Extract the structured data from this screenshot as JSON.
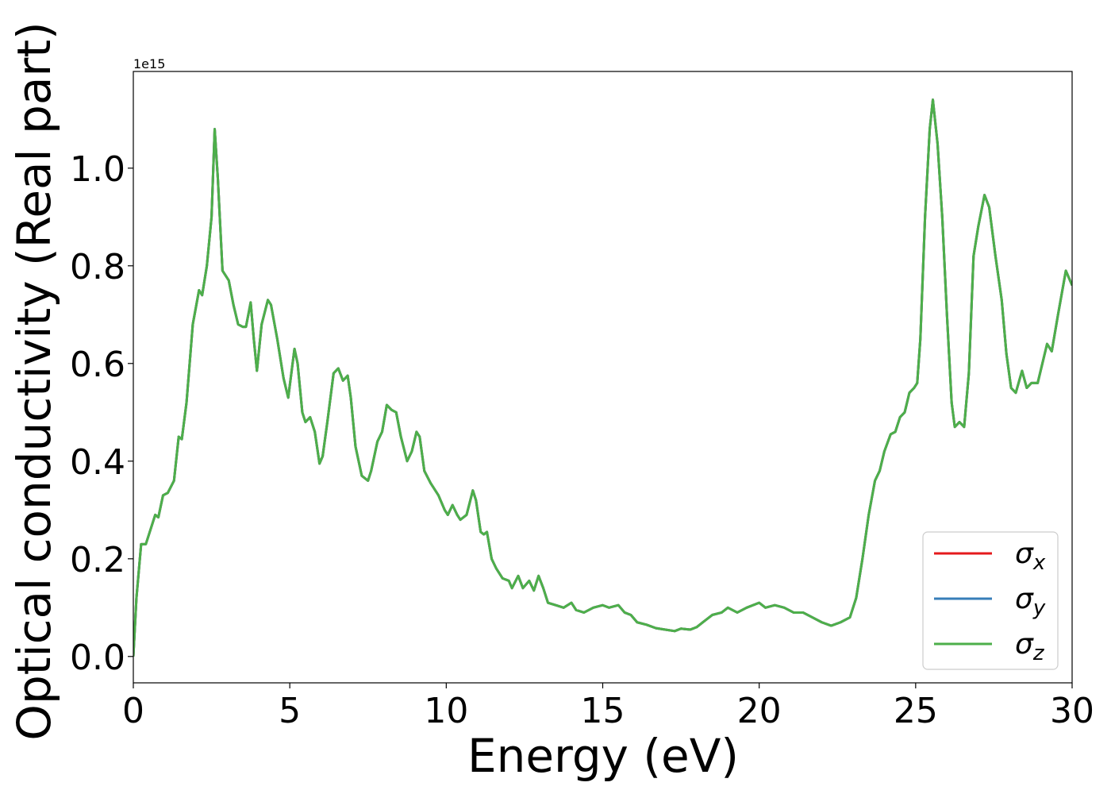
{
  "chart_data": {
    "type": "line",
    "xlabel": "Energy (eV)",
    "ylabel": "Optical conductivity (Real part)",
    "y_offset_label": "1e15",
    "xlim": [
      0,
      30
    ],
    "ylim": [
      -0.054,
      1.198
    ],
    "xticks": [
      0,
      5,
      10,
      15,
      20,
      25,
      30
    ],
    "yticks": [
      {
        "value": 0,
        "label": "0.0"
      },
      0.2,
      0.4,
      0.6,
      0.8,
      {
        "value": 1,
        "label": "1.0"
      }
    ],
    "legend": "lower right",
    "x": [
      0,
      0.1,
      0.25,
      0.4,
      0.5,
      0.7,
      0.8,
      0.95,
      1.1,
      1.3,
      1.45,
      1.55,
      1.7,
      1.9,
      2.1,
      2.2,
      2.35,
      2.5,
      2.6,
      2.7,
      2.85,
      2.95,
      3.05,
      3.2,
      3.35,
      3.5,
      3.6,
      3.75,
      3.85,
      3.95,
      4.1,
      4.3,
      4.4,
      4.6,
      4.8,
      4.95,
      5.05,
      5.15,
      5.25,
      5.4,
      5.5,
      5.65,
      5.8,
      5.95,
      6.05,
      6.2,
      6.4,
      6.55,
      6.7,
      6.85,
      6.95,
      7.1,
      7.3,
      7.5,
      7.6,
      7.8,
      7.95,
      8.1,
      8.25,
      8.4,
      8.55,
      8.75,
      8.9,
      9.05,
      9.15,
      9.3,
      9.5,
      9.75,
      9.95,
      10.05,
      10.2,
      10.35,
      10.45,
      10.65,
      10.85,
      10.95,
      11.1,
      11.2,
      11.3,
      11.45,
      11.6,
      11.8,
      12.0,
      12.1,
      12.3,
      12.45,
      12.65,
      12.8,
      12.95,
      13.1,
      13.25,
      13.5,
      13.75,
      14.0,
      14.15,
      14.4,
      14.7,
      15.0,
      15.2,
      15.5,
      15.7,
      15.9,
      16.1,
      16.4,
      16.7,
      17.0,
      17.3,
      17.5,
      17.8,
      18.0,
      18.2,
      18.5,
      18.8,
      19.0,
      19.3,
      19.6,
      20.0,
      20.2,
      20.5,
      20.8,
      21.1,
      21.4,
      21.7,
      22.0,
      22.3,
      22.6,
      22.9,
      23.1,
      23.3,
      23.5,
      23.7,
      23.85,
      24.0,
      24.2,
      24.35,
      24.5,
      24.65,
      24.8,
      24.95,
      25.05,
      25.15,
      25.3,
      25.45,
      25.55,
      25.7,
      25.85,
      26.0,
      26.15,
      26.25,
      26.4,
      26.55,
      26.7,
      26.85,
      27.0,
      27.2,
      27.35,
      27.55,
      27.75,
      27.9,
      28.05,
      28.2,
      28.4,
      28.55,
      28.7,
      28.9,
      29.05,
      29.2,
      29.35,
      29.55,
      29.8,
      30.0
    ],
    "series": [
      {
        "name": "σ",
        "subscript": "x",
        "color": "#e41a1c",
        "values": [
          0,
          0.12,
          0.23,
          0.23,
          0.25,
          0.29,
          0.285,
          0.33,
          0.335,
          0.36,
          0.45,
          0.445,
          0.52,
          0.68,
          0.75,
          0.74,
          0.8,
          0.9,
          1.08,
          0.98,
          0.79,
          0.78,
          0.77,
          0.72,
          0.68,
          0.675,
          0.675,
          0.725,
          0.65,
          0.585,
          0.68,
          0.73,
          0.72,
          0.65,
          0.57,
          0.53,
          0.58,
          0.63,
          0.6,
          0.5,
          0.48,
          0.49,
          0.46,
          0.395,
          0.41,
          0.48,
          0.58,
          0.59,
          0.565,
          0.575,
          0.53,
          0.43,
          0.37,
          0.36,
          0.38,
          0.44,
          0.46,
          0.515,
          0.505,
          0.5,
          0.45,
          0.4,
          0.42,
          0.46,
          0.45,
          0.38,
          0.355,
          0.33,
          0.3,
          0.29,
          0.31,
          0.29,
          0.28,
          0.29,
          0.34,
          0.32,
          0.255,
          0.25,
          0.255,
          0.2,
          0.18,
          0.16,
          0.155,
          0.14,
          0.165,
          0.14,
          0.155,
          0.135,
          0.165,
          0.14,
          0.11,
          0.105,
          0.1,
          0.11,
          0.095,
          0.09,
          0.1,
          0.105,
          0.1,
          0.105,
          0.09,
          0.085,
          0.07,
          0.065,
          0.058,
          0.055,
          0.052,
          0.057,
          0.055,
          0.06,
          0.07,
          0.085,
          0.09,
          0.1,
          0.09,
          0.1,
          0.11,
          0.1,
          0.105,
          0.1,
          0.09,
          0.09,
          0.08,
          0.07,
          0.063,
          0.07,
          0.08,
          0.12,
          0.2,
          0.29,
          0.36,
          0.38,
          0.42,
          0.455,
          0.46,
          0.49,
          0.5,
          0.54,
          0.55,
          0.56,
          0.65,
          0.9,
          1.08,
          1.14,
          1.05,
          0.9,
          0.7,
          0.52,
          0.47,
          0.48,
          0.47,
          0.58,
          0.82,
          0.88,
          0.945,
          0.92,
          0.82,
          0.73,
          0.62,
          0.55,
          0.54,
          0.585,
          0.55,
          0.56,
          0.56,
          0.6,
          0.64,
          0.625,
          0.7,
          0.79,
          0.76
        ]
      },
      {
        "name": "σ",
        "subscript": "y",
        "color": "#377eb8",
        "values": [
          0,
          0.12,
          0.23,
          0.23,
          0.25,
          0.29,
          0.285,
          0.33,
          0.335,
          0.36,
          0.45,
          0.445,
          0.52,
          0.68,
          0.75,
          0.74,
          0.8,
          0.9,
          1.08,
          0.98,
          0.79,
          0.78,
          0.77,
          0.72,
          0.68,
          0.675,
          0.675,
          0.725,
          0.65,
          0.585,
          0.68,
          0.73,
          0.72,
          0.65,
          0.57,
          0.53,
          0.58,
          0.63,
          0.6,
          0.5,
          0.48,
          0.49,
          0.46,
          0.395,
          0.41,
          0.48,
          0.58,
          0.59,
          0.565,
          0.575,
          0.53,
          0.43,
          0.37,
          0.36,
          0.38,
          0.44,
          0.46,
          0.515,
          0.505,
          0.5,
          0.45,
          0.4,
          0.42,
          0.46,
          0.45,
          0.38,
          0.355,
          0.33,
          0.3,
          0.29,
          0.31,
          0.29,
          0.28,
          0.29,
          0.34,
          0.32,
          0.255,
          0.25,
          0.255,
          0.2,
          0.18,
          0.16,
          0.155,
          0.14,
          0.165,
          0.14,
          0.155,
          0.135,
          0.165,
          0.14,
          0.11,
          0.105,
          0.1,
          0.11,
          0.095,
          0.09,
          0.1,
          0.105,
          0.1,
          0.105,
          0.09,
          0.085,
          0.07,
          0.065,
          0.058,
          0.055,
          0.052,
          0.057,
          0.055,
          0.06,
          0.07,
          0.085,
          0.09,
          0.1,
          0.09,
          0.1,
          0.11,
          0.1,
          0.105,
          0.1,
          0.09,
          0.09,
          0.08,
          0.07,
          0.063,
          0.07,
          0.08,
          0.12,
          0.2,
          0.29,
          0.36,
          0.38,
          0.42,
          0.455,
          0.46,
          0.49,
          0.5,
          0.54,
          0.55,
          0.56,
          0.65,
          0.9,
          1.08,
          1.14,
          1.05,
          0.9,
          0.7,
          0.52,
          0.47,
          0.48,
          0.47,
          0.58,
          0.82,
          0.88,
          0.945,
          0.92,
          0.82,
          0.73,
          0.62,
          0.55,
          0.54,
          0.585,
          0.55,
          0.56,
          0.56,
          0.6,
          0.64,
          0.625,
          0.7,
          0.79,
          0.76
        ]
      },
      {
        "name": "σ",
        "subscript": "z",
        "color": "#4daf4a",
        "values": [
          0,
          0.12,
          0.23,
          0.23,
          0.25,
          0.29,
          0.285,
          0.33,
          0.335,
          0.36,
          0.45,
          0.445,
          0.52,
          0.68,
          0.75,
          0.74,
          0.8,
          0.9,
          1.08,
          0.98,
          0.79,
          0.78,
          0.77,
          0.72,
          0.68,
          0.675,
          0.675,
          0.725,
          0.65,
          0.585,
          0.68,
          0.73,
          0.72,
          0.65,
          0.57,
          0.53,
          0.58,
          0.63,
          0.6,
          0.5,
          0.48,
          0.49,
          0.46,
          0.395,
          0.41,
          0.48,
          0.58,
          0.59,
          0.565,
          0.575,
          0.53,
          0.43,
          0.37,
          0.36,
          0.38,
          0.44,
          0.46,
          0.515,
          0.505,
          0.5,
          0.45,
          0.4,
          0.42,
          0.46,
          0.45,
          0.38,
          0.355,
          0.33,
          0.3,
          0.29,
          0.31,
          0.29,
          0.28,
          0.29,
          0.34,
          0.32,
          0.255,
          0.25,
          0.255,
          0.2,
          0.18,
          0.16,
          0.155,
          0.14,
          0.165,
          0.14,
          0.155,
          0.135,
          0.165,
          0.14,
          0.11,
          0.105,
          0.1,
          0.11,
          0.095,
          0.09,
          0.1,
          0.105,
          0.1,
          0.105,
          0.09,
          0.085,
          0.07,
          0.065,
          0.058,
          0.055,
          0.052,
          0.057,
          0.055,
          0.06,
          0.07,
          0.085,
          0.09,
          0.1,
          0.09,
          0.1,
          0.11,
          0.1,
          0.105,
          0.1,
          0.09,
          0.09,
          0.08,
          0.07,
          0.063,
          0.07,
          0.08,
          0.12,
          0.2,
          0.29,
          0.36,
          0.38,
          0.42,
          0.455,
          0.46,
          0.49,
          0.5,
          0.54,
          0.55,
          0.56,
          0.65,
          0.9,
          1.08,
          1.14,
          1.05,
          0.9,
          0.7,
          0.52,
          0.47,
          0.48,
          0.47,
          0.58,
          0.82,
          0.88,
          0.945,
          0.92,
          0.82,
          0.73,
          0.62,
          0.55,
          0.54,
          0.585,
          0.55,
          0.56,
          0.56,
          0.6,
          0.64,
          0.625,
          0.7,
          0.79,
          0.76
        ]
      }
    ]
  }
}
